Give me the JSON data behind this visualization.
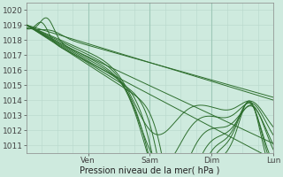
{
  "xlabel": "Pression niveau de la mer( hPa )",
  "ylim": [
    1010.5,
    1020.5
  ],
  "yticks": [
    1011,
    1012,
    1013,
    1014,
    1015,
    1016,
    1017,
    1018,
    1019,
    1020
  ],
  "xlim": [
    0,
    96
  ],
  "xtick_positions": [
    24,
    48,
    72,
    96
  ],
  "xtick_labels": [
    "Ven",
    "Sam",
    "Dim",
    "Lun"
  ],
  "bg_color": "#ceeade",
  "grid_minor_color": "#b8d8cc",
  "grid_major_color": "#9ec8b8",
  "line_color": "#2d6e2d",
  "fig_bg": "#ceeade"
}
